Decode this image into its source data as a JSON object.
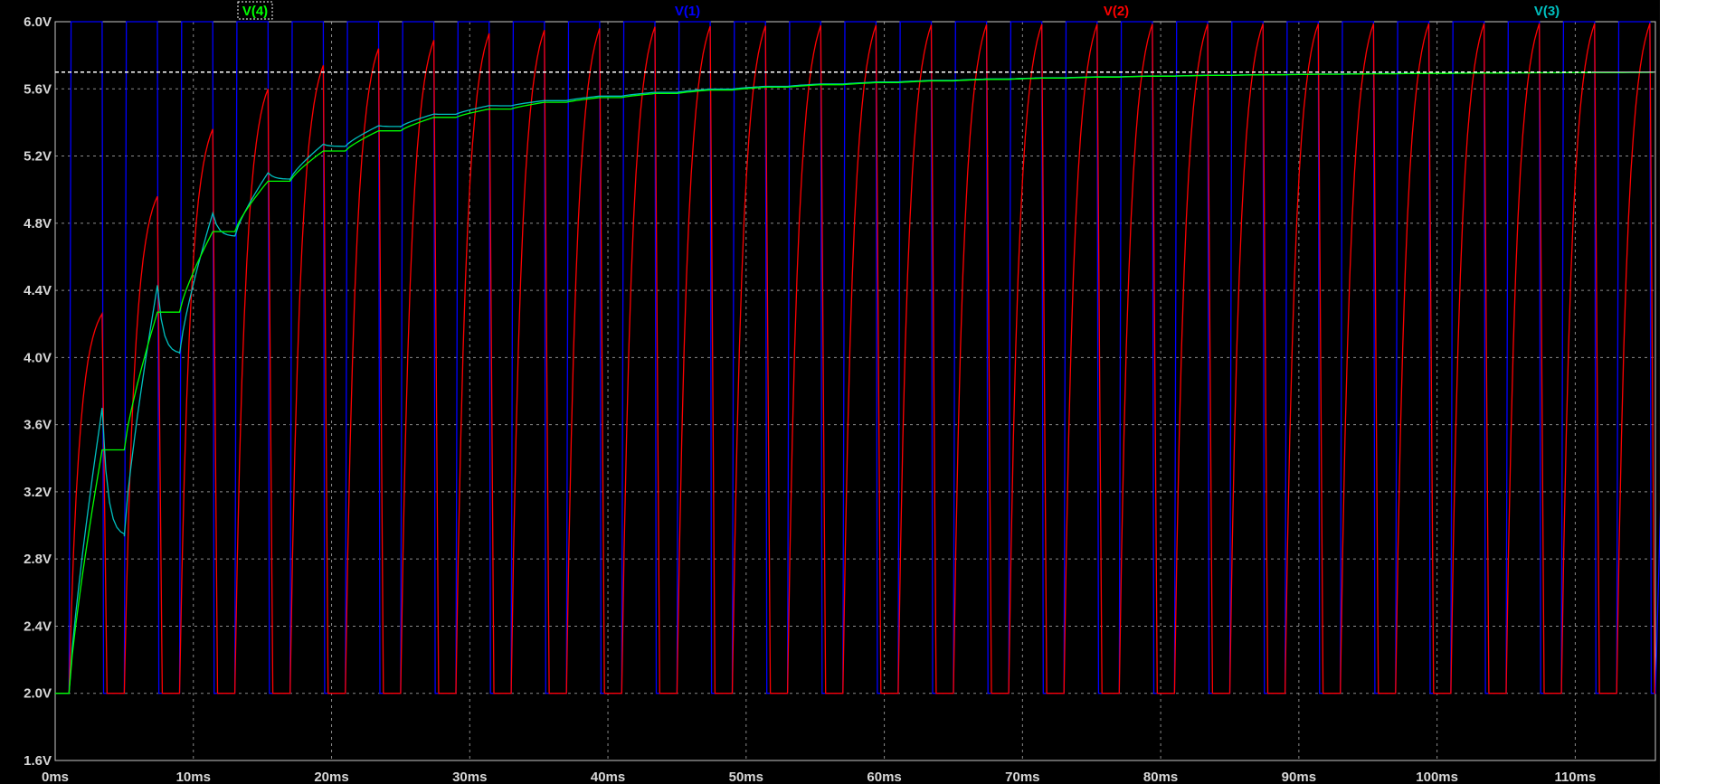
{
  "chart_data": {
    "type": "line",
    "xlabel": "",
    "ylabel": "",
    "xlim": [
      0,
      115.8
    ],
    "ylim": [
      1.6,
      6.0
    ],
    "x_ticks": [
      "0ms",
      "10ms",
      "20ms",
      "30ms",
      "40ms",
      "50ms",
      "60ms",
      "70ms",
      "80ms",
      "90ms",
      "100ms",
      "110ms"
    ],
    "y_ticks": [
      "1.6V",
      "2.0V",
      "2.4V",
      "2.8V",
      "3.2V",
      "3.6V",
      "4.0V",
      "4.4V",
      "4.8V",
      "5.2V",
      "5.6V",
      "6.0V"
    ],
    "grid": true,
    "cursor_level": 5.7,
    "pwm": {
      "period_ms": 4.0,
      "high_ms": 1.6,
      "start_ms": 1.0,
      "v_high": 6.0,
      "v_low": 2.0
    },
    "series": [
      {
        "name": "V(4)",
        "color": "#00ff00"
      },
      {
        "name": "V(1)",
        "color": "#0000ff"
      },
      {
        "name": "V(2)",
        "color": "#ff0000"
      },
      {
        "name": "V(3)",
        "color": "#00bfbf"
      }
    ],
    "peaks": {
      "V(2)": [
        4.26,
        4.96,
        5.36,
        5.6,
        5.74,
        5.84,
        5.89,
        5.93,
        5.95,
        5.96,
        5.97
      ],
      "V(3)": [
        3.7,
        4.43,
        4.86,
        5.1,
        5.27,
        5.38,
        5.45,
        5.5,
        5.53
      ],
      "V(4)": [
        3.45,
        4.27,
        4.75,
        5.05,
        5.23,
        5.35,
        5.43,
        5.48,
        5.52
      ]
    }
  }
}
